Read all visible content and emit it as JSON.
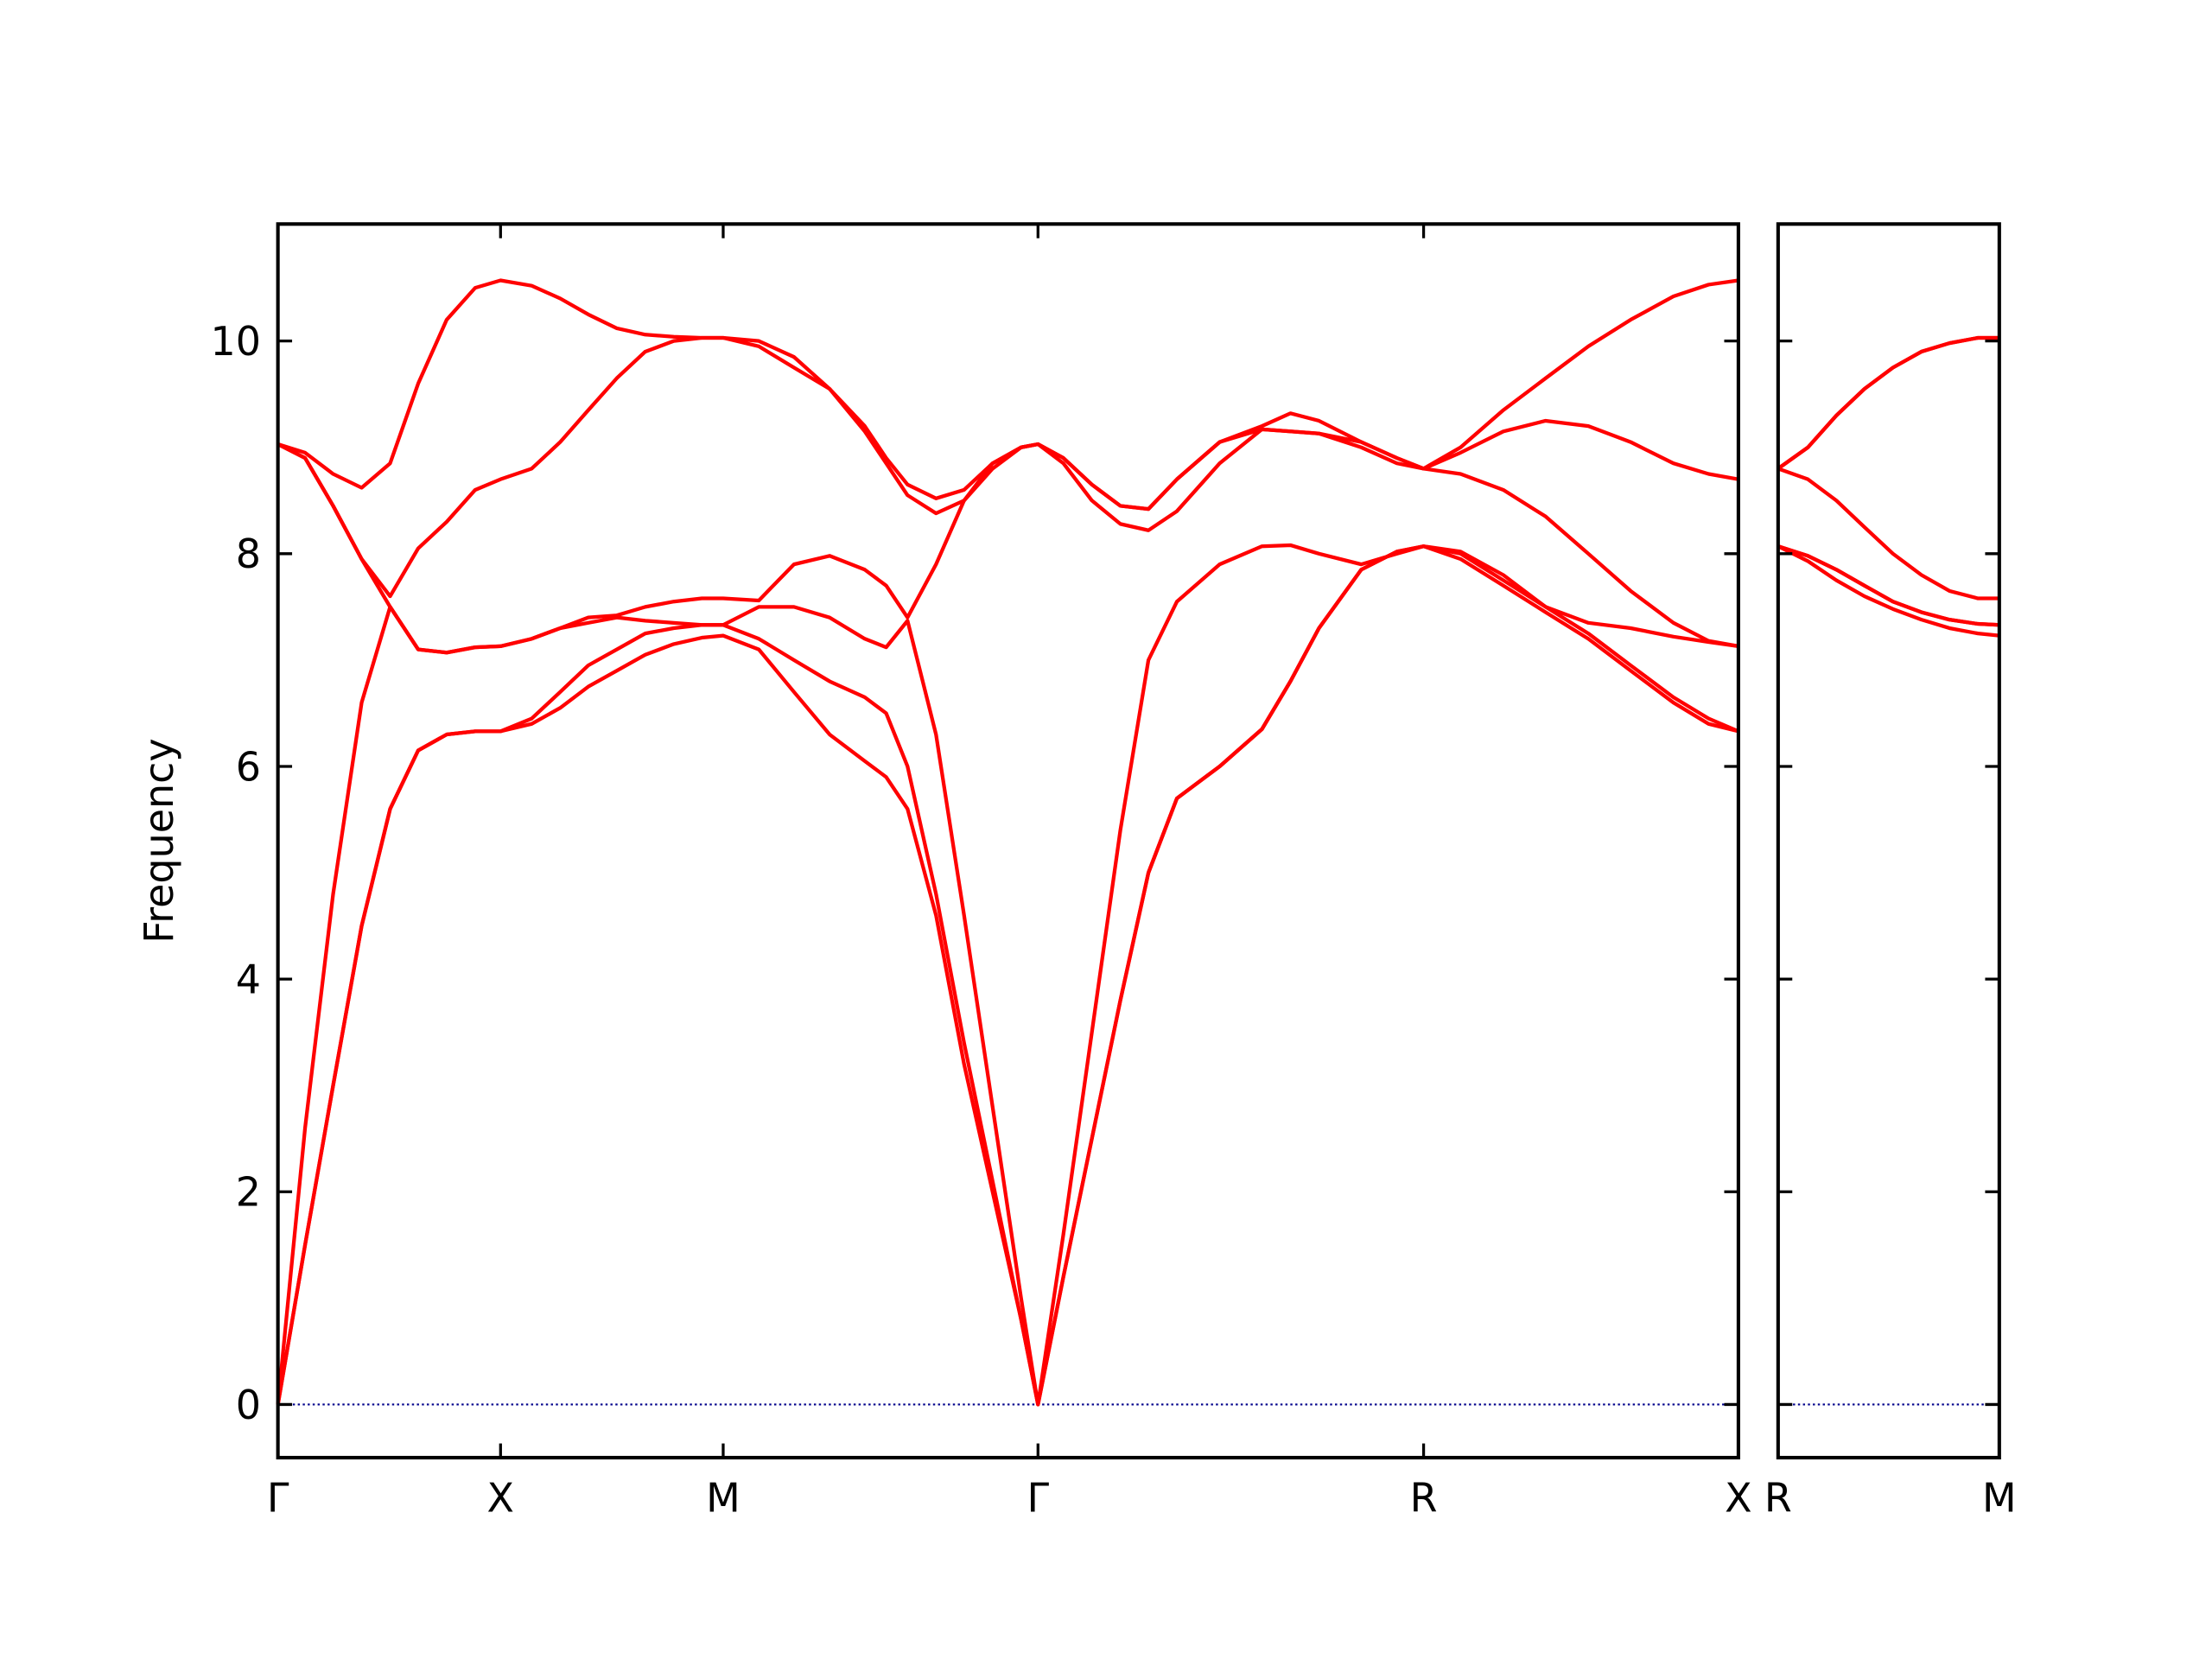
{
  "chart_data": [
    {
      "type": "line",
      "ylabel": "Frequency",
      "x": [
        0,
        0.061,
        0.124,
        0.188,
        0.252,
        0.315,
        0.379,
        0.443,
        0.5,
        0.57,
        0.634,
        0.697,
        0.761,
        0.825,
        0.889,
        0.952,
        1.0,
        1.08,
        1.159,
        1.239,
        1.318,
        1.366,
        1.414,
        1.478,
        1.541,
        1.605,
        1.669,
        1.707,
        1.764,
        1.828,
        1.892,
        1.955,
        2.019,
        2.115,
        2.21,
        2.274,
        2.338,
        2.433,
        2.513,
        2.573,
        2.656,
        2.752,
        2.847,
        2.943,
        3.038,
        3.134,
        3.213,
        3.28
      ],
      "series": [
        {
          "color": "#ff0000",
          "values": [
            0,
            1.5,
            3.0,
            4.5,
            5.6,
            6.15,
            6.3,
            6.33,
            6.33,
            6.4,
            6.55,
            6.75,
            6.9,
            7.05,
            7.15,
            7.21,
            7.23,
            7.1,
            6.7,
            6.3,
            6.05,
            5.9,
            5.6,
            4.6,
            3.2,
            2.0,
            0.8,
            0,
            1.2,
            2.5,
            3.8,
            5.0,
            5.7,
            6.0,
            6.35,
            6.8,
            7.3,
            7.85,
            8.02,
            8.07,
            7.95,
            7.7,
            7.45,
            7.2,
            6.9,
            6.6,
            6.4,
            6.33
          ]
        },
        {
          "color": "#ff0000",
          "values": [
            0,
            1.5,
            3.0,
            4.5,
            5.6,
            6.15,
            6.3,
            6.33,
            6.33,
            6.45,
            6.7,
            6.95,
            7.1,
            7.25,
            7.3,
            7.33,
            7.33,
            7.2,
            7.0,
            6.8,
            6.65,
            6.5,
            6.0,
            4.8,
            3.4,
            2.1,
            0.8,
            0,
            1.2,
            2.5,
            3.8,
            5.0,
            5.7,
            6.0,
            6.35,
            6.8,
            7.3,
            7.85,
            8.02,
            8.07,
            8.0,
            7.75,
            7.5,
            7.25,
            6.95,
            6.65,
            6.45,
            6.33
          ]
        },
        {
          "color": "#ff0000",
          "values": [
            0,
            2.6,
            4.8,
            6.6,
            7.5,
            7.1,
            7.07,
            7.12,
            7.13,
            7.2,
            7.3,
            7.35,
            7.4,
            7.37,
            7.35,
            7.33,
            7.33,
            7.5,
            7.5,
            7.4,
            7.2,
            7.12,
            7.37,
            6.3,
            4.6,
            2.8,
            1.0,
            0,
            1.6,
            3.5,
            5.4,
            7.0,
            7.55,
            7.9,
            8.07,
            8.08,
            8.0,
            7.9,
            8.0,
            8.07,
            8.02,
            7.8,
            7.5,
            7.35,
            7.3,
            7.22,
            7.17,
            7.13
          ]
        },
        {
          "color": "#ff0000",
          "values": [
            9.03,
            8.9,
            8.45,
            7.95,
            7.5,
            7.1,
            7.07,
            7.12,
            7.13,
            7.2,
            7.3,
            7.4,
            7.42,
            7.5,
            7.55,
            7.58,
            7.58,
            7.56,
            7.9,
            7.98,
            7.85,
            7.7,
            7.4,
            7.9,
            8.5,
            8.85,
            9.0,
            9.03,
            8.85,
            8.5,
            8.28,
            8.22,
            8.4,
            8.85,
            9.17,
            9.15,
            9.13,
            9.0,
            8.85,
            8.8,
            8.75,
            8.6,
            8.35,
            8.0,
            7.65,
            7.35,
            7.18,
            7.13
          ]
        },
        {
          "color": "#ff0000",
          "values": [
            9.03,
            8.9,
            8.45,
            7.95,
            7.6,
            8.05,
            8.3,
            8.6,
            8.7,
            8.8,
            9.05,
            9.35,
            9.65,
            9.9,
            10.0,
            10.03,
            10.03,
            9.95,
            9.75,
            9.55,
            9.15,
            8.85,
            8.55,
            8.38,
            8.5,
            8.8,
            9.0,
            9.03,
            8.9,
            8.65,
            8.45,
            8.42,
            8.7,
            9.05,
            9.17,
            9.15,
            9.13,
            9.05,
            8.9,
            8.8,
            8.95,
            9.15,
            9.25,
            9.2,
            9.05,
            8.85,
            8.75,
            8.7
          ]
        },
        {
          "color": "#ff0000",
          "values": [
            9.03,
            8.95,
            8.75,
            8.62,
            8.85,
            9.6,
            10.2,
            10.5,
            10.57,
            10.52,
            10.4,
            10.25,
            10.12,
            10.06,
            10.04,
            10.03,
            10.03,
            10.0,
            9.85,
            9.55,
            9.2,
            8.9,
            8.65,
            8.52,
            8.6,
            8.85,
            9.0,
            9.03,
            8.9,
            8.65,
            8.45,
            8.42,
            8.7,
            9.05,
            9.2,
            9.32,
            9.25,
            9.05,
            8.9,
            8.8,
            9.0,
            9.35,
            9.65,
            9.95,
            10.2,
            10.42,
            10.53,
            10.57
          ]
        }
      ],
      "xlim": [
        0,
        3.28
      ],
      "xticks": [
        {
          "value": 0,
          "label": "Γ"
        },
        {
          "value": 0.5,
          "label": "X"
        },
        {
          "value": 1.0,
          "label": "M"
        },
        {
          "value": 1.707,
          "label": "Γ"
        },
        {
          "value": 2.573,
          "label": "R"
        },
        {
          "value": 3.28,
          "label": "X"
        }
      ],
      "ylim": [
        -0.5,
        11.1
      ],
      "yticks": [
        0,
        2,
        4,
        6,
        8,
        10
      ],
      "ytick_labels": true,
      "hline": {
        "value": 0,
        "color": "#00008b",
        "style": "dotted"
      }
    },
    {
      "type": "line",
      "x": [
        3.28,
        3.347,
        3.411,
        3.474,
        3.538,
        3.602,
        3.665,
        3.729,
        3.777
      ],
      "series": [
        {
          "color": "#ff0000",
          "values": [
            8.07,
            7.93,
            7.75,
            7.6,
            7.48,
            7.38,
            7.3,
            7.25,
            7.23
          ]
        },
        {
          "color": "#ff0000",
          "values": [
            8.07,
            7.98,
            7.85,
            7.7,
            7.55,
            7.45,
            7.38,
            7.34,
            7.33
          ]
        },
        {
          "color": "#ff0000",
          "values": [
            8.07,
            7.98,
            7.85,
            7.7,
            7.55,
            7.45,
            7.38,
            7.34,
            7.33
          ]
        },
        {
          "color": "#ff0000",
          "values": [
            8.8,
            8.7,
            8.5,
            8.25,
            8.0,
            7.8,
            7.65,
            7.58,
            7.58
          ]
        },
        {
          "color": "#ff0000",
          "values": [
            8.8,
            9.0,
            9.3,
            9.55,
            9.75,
            9.9,
            9.98,
            10.03,
            10.03
          ]
        },
        {
          "color": "#ff0000",
          "values": [
            8.8,
            9.0,
            9.3,
            9.55,
            9.75,
            9.9,
            9.98,
            10.03,
            10.03
          ]
        }
      ],
      "xlim": [
        3.28,
        3.777
      ],
      "xticks": [
        {
          "value": 3.28,
          "label": "R"
        },
        {
          "value": 3.777,
          "label": "M"
        }
      ],
      "ylim": [
        -0.5,
        11.1
      ],
      "yticks": [
        0,
        2,
        4,
        6,
        8,
        10
      ],
      "ytick_labels": false,
      "hline": {
        "value": 0,
        "color": "#00008b",
        "style": "dotted"
      }
    }
  ]
}
